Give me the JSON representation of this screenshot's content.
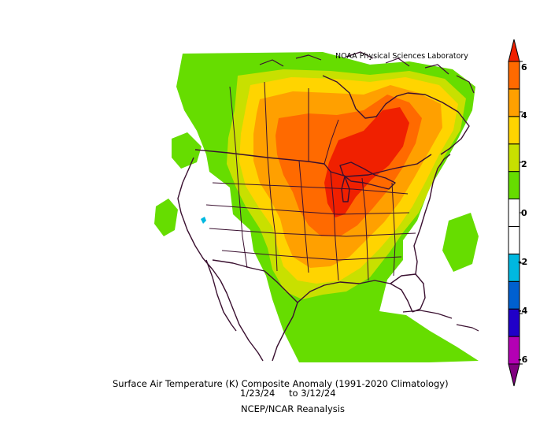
{
  "credit": "NOAA Physical Sciences Laboratory",
  "title": {
    "line1": "Surface Air Temperature (K) Composite Anomaly (1991-2020 Climatology)",
    "period_start": "1/23/24",
    "period_sep": "to",
    "period_end": "3/12/24",
    "source": "NCEP/NCAR Reanalysis"
  },
  "colorbar": {
    "labels": [
      "6",
      "4",
      "2",
      "0",
      "-2",
      "-4",
      "-6"
    ],
    "colors": [
      "#800080",
      "#b400b4",
      "#2000c8",
      "#0060d0",
      "#00b8e0",
      "#ffffff",
      "#ffffff",
      "#66dd00",
      "#c8e000",
      "#ffd400",
      "#ffa000",
      "#ff6a00",
      "#f02000"
    ]
  },
  "map": {
    "region": "North America",
    "anomaly_colors": {
      "green": "#66dd00",
      "yellowgreen": "#c8e000",
      "yellow": "#ffd400",
      "orange": "#ffa000",
      "darkorange": "#ff6a00",
      "red": "#f02000",
      "cyan": "#00b8e0",
      "boundary": "#3a1030"
    }
  }
}
